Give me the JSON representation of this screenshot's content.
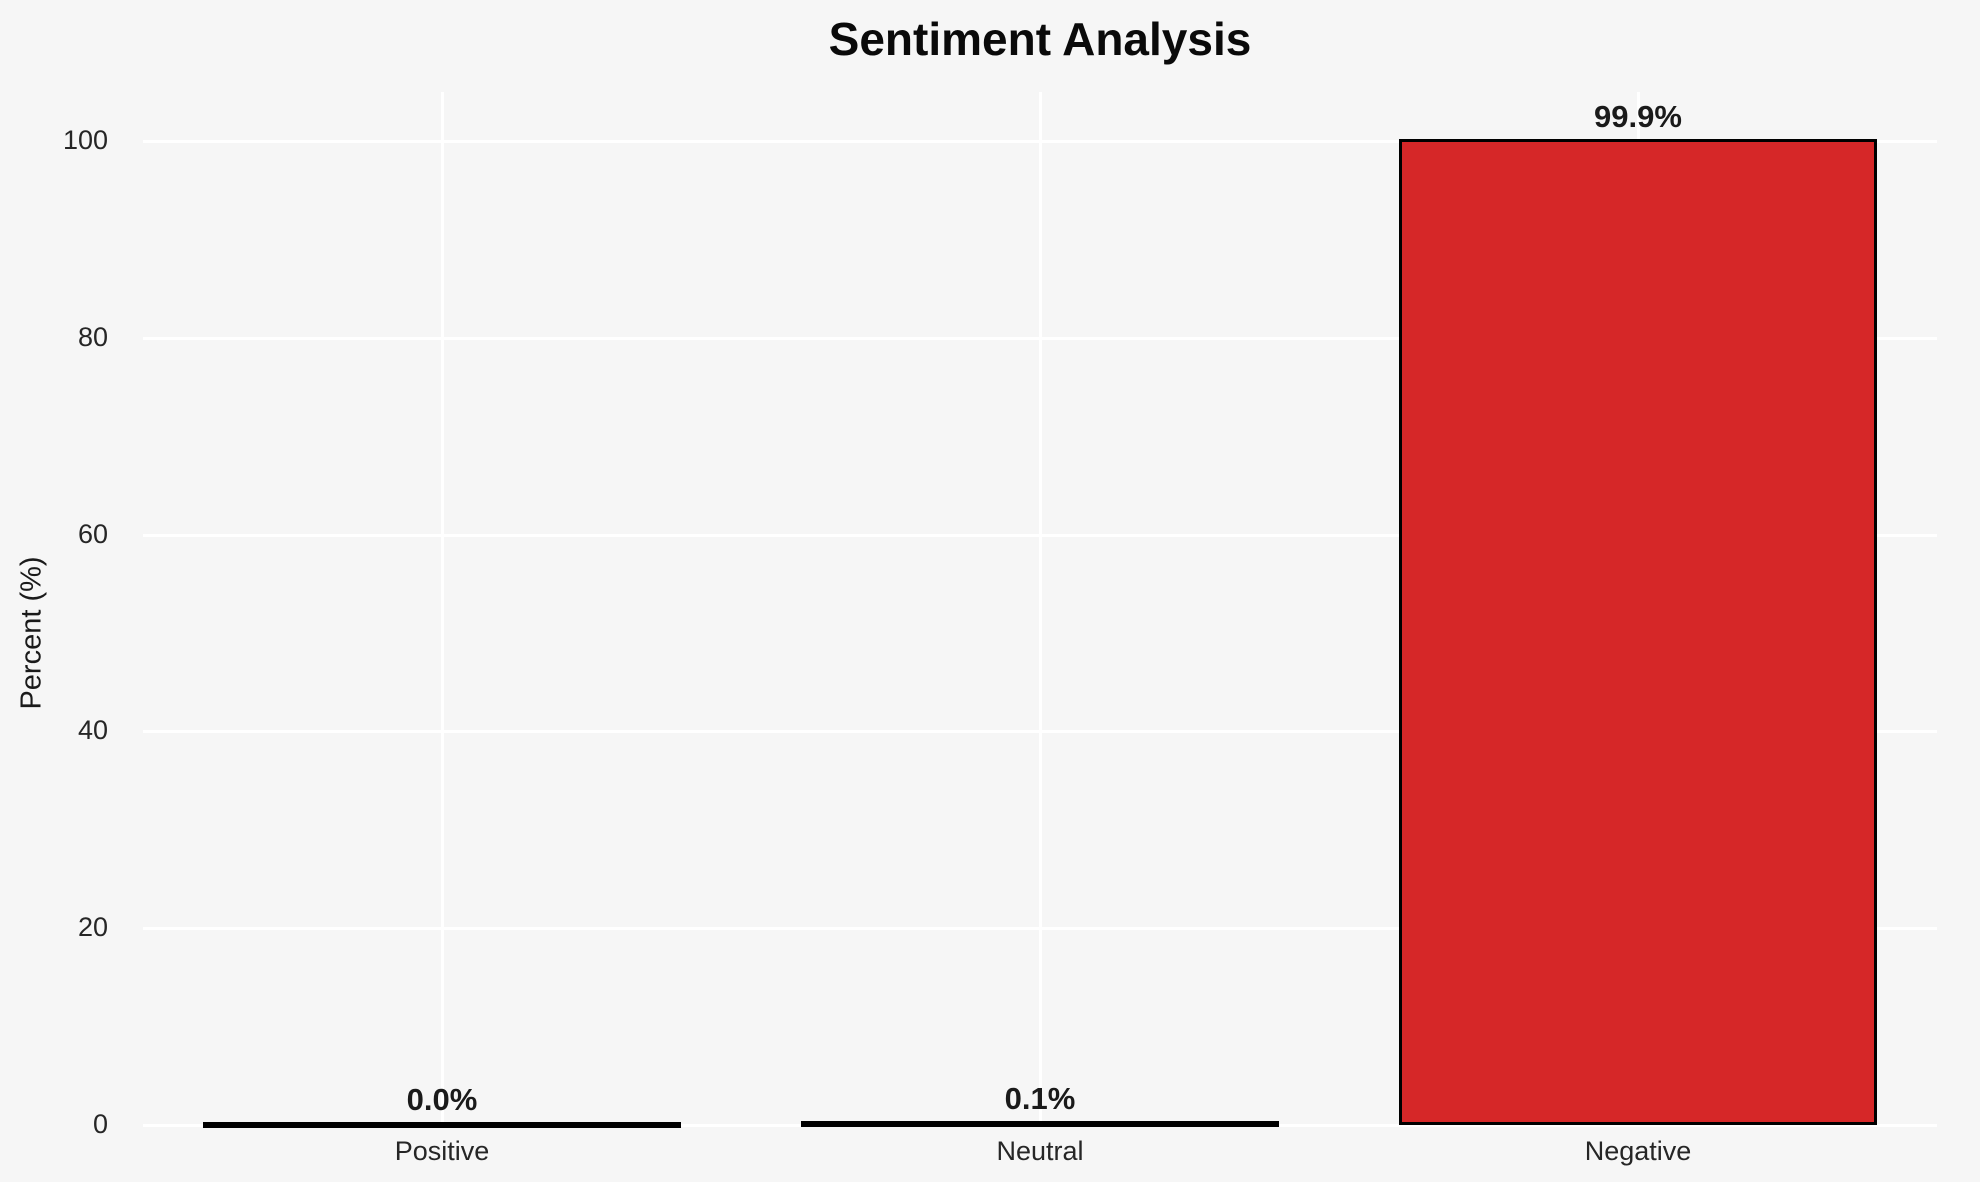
{
  "chart_data": {
    "type": "bar",
    "title": "Sentiment Analysis",
    "categories": [
      "Positive",
      "Neutral",
      "Negative"
    ],
    "values": [
      0.0,
      0.1,
      99.9
    ],
    "value_labels": [
      "0.0%",
      "0.1%",
      "99.9%"
    ],
    "xlabel": "",
    "ylabel": "Percent (%)",
    "ylim": [
      0,
      105
    ],
    "yticks": [
      0,
      20,
      40,
      60,
      80,
      100
    ],
    "grid": true,
    "legend": false,
    "bar_color": "#d62728",
    "bar_edge_color": "#000000",
    "background_color": "#f6f6f6",
    "gridline_color": "#ffffff",
    "text_color": "#1a1a1a"
  }
}
